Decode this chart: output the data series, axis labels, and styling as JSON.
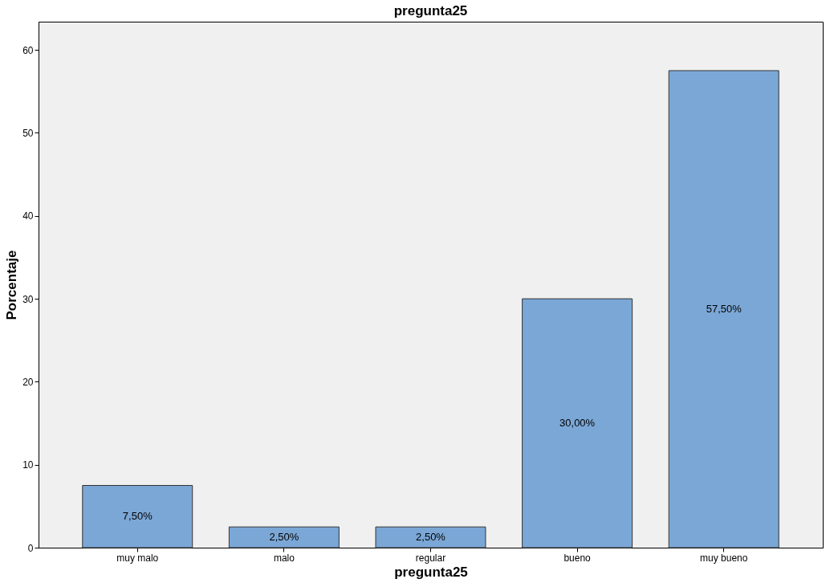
{
  "chart_data": {
    "type": "bar",
    "title": "pregunta25",
    "xlabel": "pregunta25",
    "ylabel": "Porcentaje",
    "categories": [
      "muy malo",
      "malo",
      "regular",
      "bueno",
      "muy bueno"
    ],
    "values": [
      7.5,
      2.5,
      2.5,
      30,
      57.5
    ],
    "value_labels": [
      "7,50%",
      "2,50%",
      "2,50%",
      "30,00%",
      "57,50%"
    ],
    "color": "#7ba7d6",
    "ylim": [
      0,
      63.4
    ],
    "yticks": [
      0,
      10,
      20,
      30,
      40,
      50,
      60
    ],
    "grid": false
  }
}
